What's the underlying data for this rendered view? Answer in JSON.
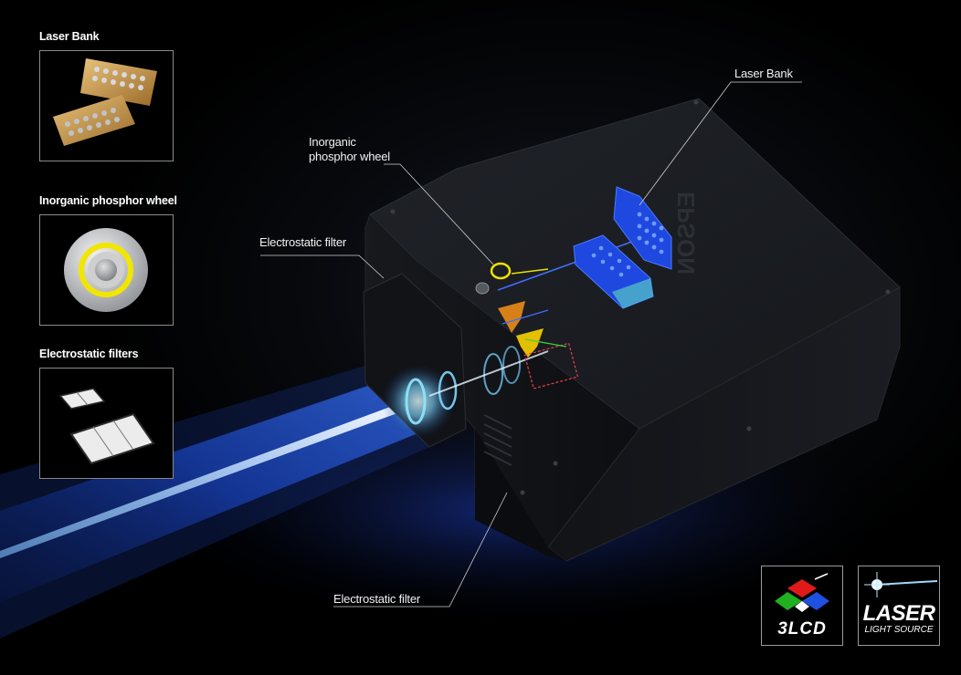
{
  "insets": [
    {
      "id": "laser-bank",
      "title": "Laser Bank"
    },
    {
      "id": "phosphor-wheel",
      "title": "Inorganic phosphor wheel"
    },
    {
      "id": "electrostatic-filters",
      "title": "Electrostatic filters"
    }
  ],
  "callouts": {
    "laser_bank": "Laser Bank",
    "phosphor_wheel_line1": "Inorganic",
    "phosphor_wheel_line2": "phosphor wheel",
    "electrostatic_filter_top": "Electrostatic filter",
    "electrostatic_filter_bottom": "Electrostatic filter"
  },
  "projector": {
    "brand": "EPSON"
  },
  "logos": {
    "lcd_text": "3LCD",
    "laser_title": "LASER",
    "laser_subtitle": "LIGHT SOURCE"
  },
  "colors": {
    "laser_beam": "#9fd8ff",
    "laser_glow": "#1f4fd6",
    "body": "#111317",
    "accent_blue": "#2f6bff",
    "phosphor_yellow": "#f0e000",
    "optics_cyan": "#6fd6ff"
  }
}
